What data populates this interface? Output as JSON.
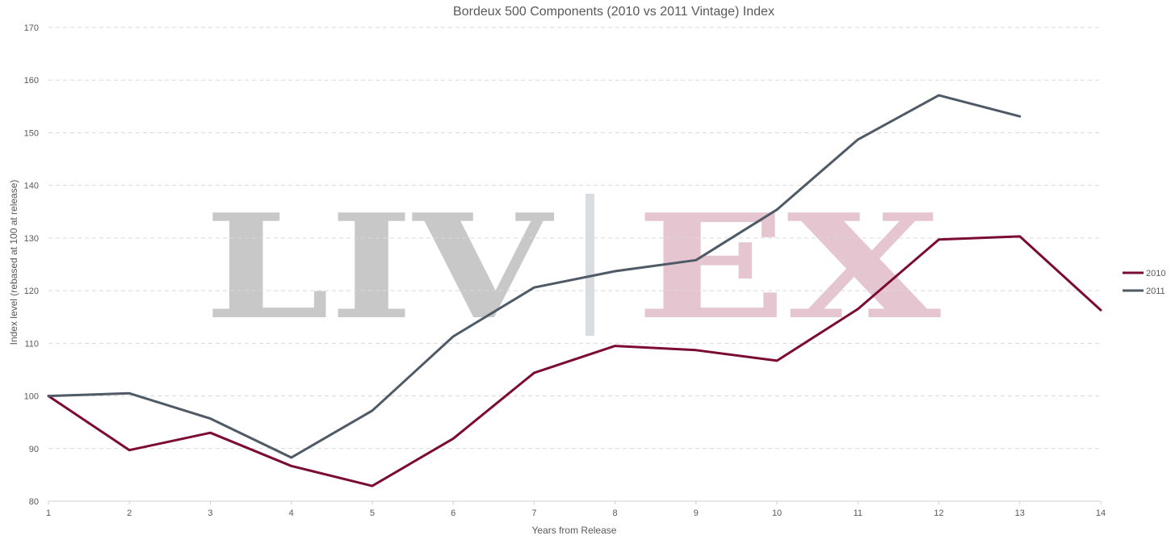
{
  "chart_data": {
    "type": "line",
    "title": "Bordeux 500 Components (2010 vs 2011 Vintage) Index",
    "xlabel": "Years from Release",
    "ylabel": "Index level (rebased at 100 at release)",
    "x": [
      1,
      2,
      3,
      4,
      5,
      6,
      7,
      8,
      9,
      10,
      11,
      12,
      13,
      14
    ],
    "xlim": [
      1,
      14
    ],
    "ylim": [
      80,
      170
    ],
    "yticks": [
      80,
      90,
      100,
      110,
      120,
      130,
      140,
      150,
      160,
      170
    ],
    "grid": true,
    "legend_position": "right",
    "series": [
      {
        "name": "2010",
        "color": "#7b0a34",
        "values": [
          100,
          89.7,
          93.0,
          86.7,
          82.9,
          91.9,
          104.4,
          109.5,
          108.7,
          106.7,
          116.5,
          129.7,
          130.3,
          116.3
        ]
      },
      {
        "name": "2011",
        "color": "#4e5a66",
        "values": [
          100,
          100.5,
          95.7,
          88.3,
          97.2,
          111.3,
          120.6,
          123.7,
          125.8,
          135.4,
          148.7,
          157.1,
          153.1,
          null
        ]
      }
    ]
  },
  "watermark": {
    "left_text": "LIV",
    "right_text": "EX",
    "left_color": "#c8c8c8",
    "right_color": "#e5c6d0",
    "divider_color": "#d9dde2"
  }
}
